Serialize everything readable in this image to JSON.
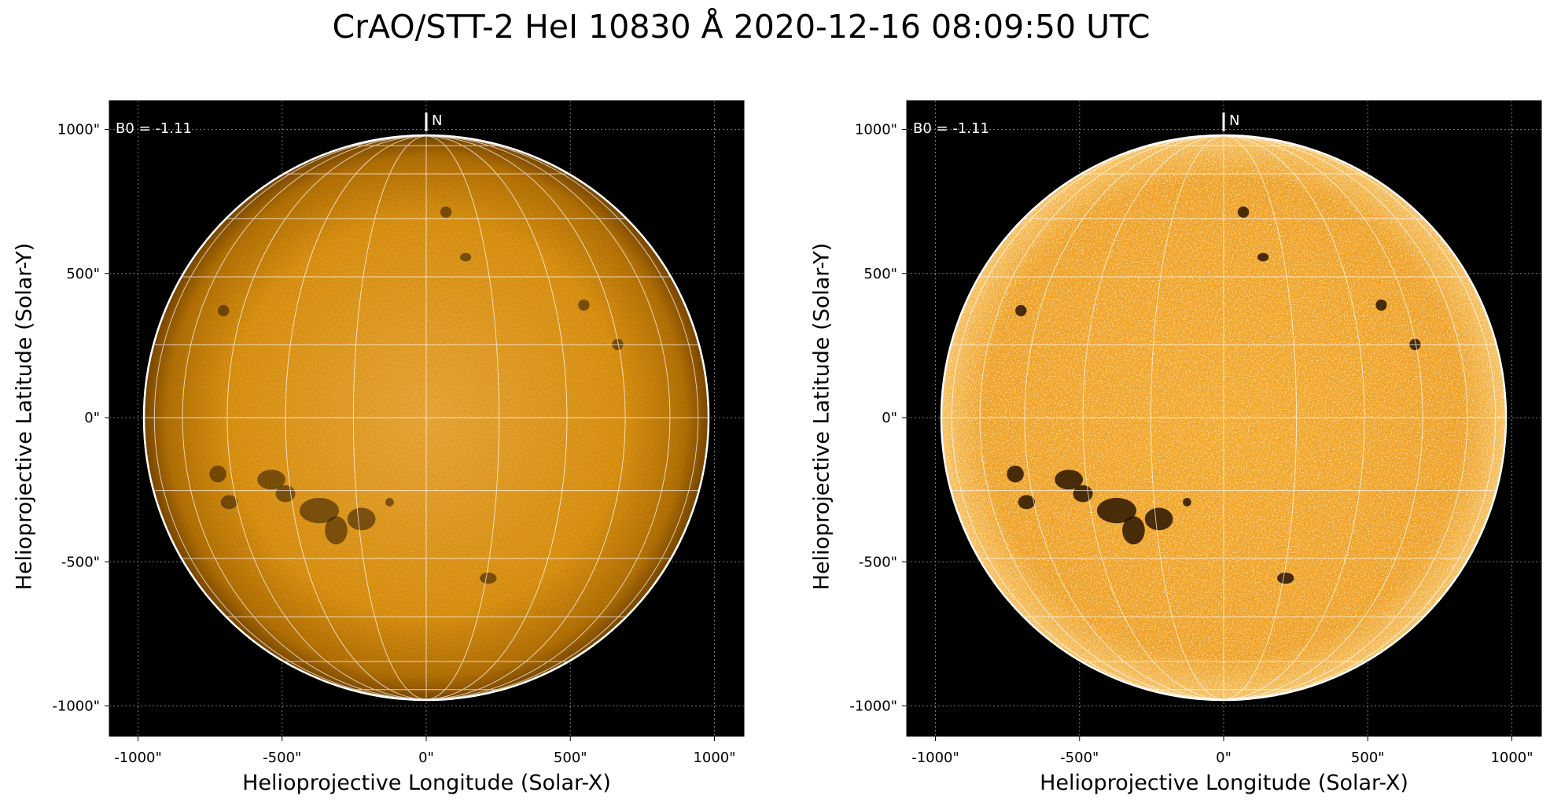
{
  "title": "CrAO/STT-2 HeI 10830 Å 2020-12-16 08:09:50 UTC",
  "panels": [
    {
      "ylabel": "Helioprojective Latitude (Solar-Y)",
      "xlabel": "Helioprojective Longitude (Solar-X)",
      "b0_label": "B0 = -1.11",
      "north_label": "N",
      "xticks": [
        "-1000\"",
        "-500\"",
        "0\"",
        "500\"",
        "1000\""
      ],
      "yticks": [
        "1000\"",
        "500\"",
        "0\"",
        "-500\"",
        "-1000\""
      ],
      "contrast": "normal"
    },
    {
      "ylabel": "Helioprojective Latitude (Solar-Y)",
      "xlabel": "Helioprojective Longitude (Solar-X)",
      "b0_label": "B0 = -1.11",
      "north_label": "N",
      "xticks": [
        "-1000\"",
        "-500\"",
        "0\"",
        "500\"",
        "1000\""
      ],
      "yticks": [
        "1000\"",
        "500\"",
        "0\"",
        "-500\"",
        "-1000\""
      ],
      "contrast": "enhanced"
    }
  ],
  "colors": {
    "disk_center": "#f5a623",
    "disk_edge": "#a86400",
    "disk_enhanced": "#f0a020",
    "background": "#000000",
    "grid": "#ffffff"
  }
}
